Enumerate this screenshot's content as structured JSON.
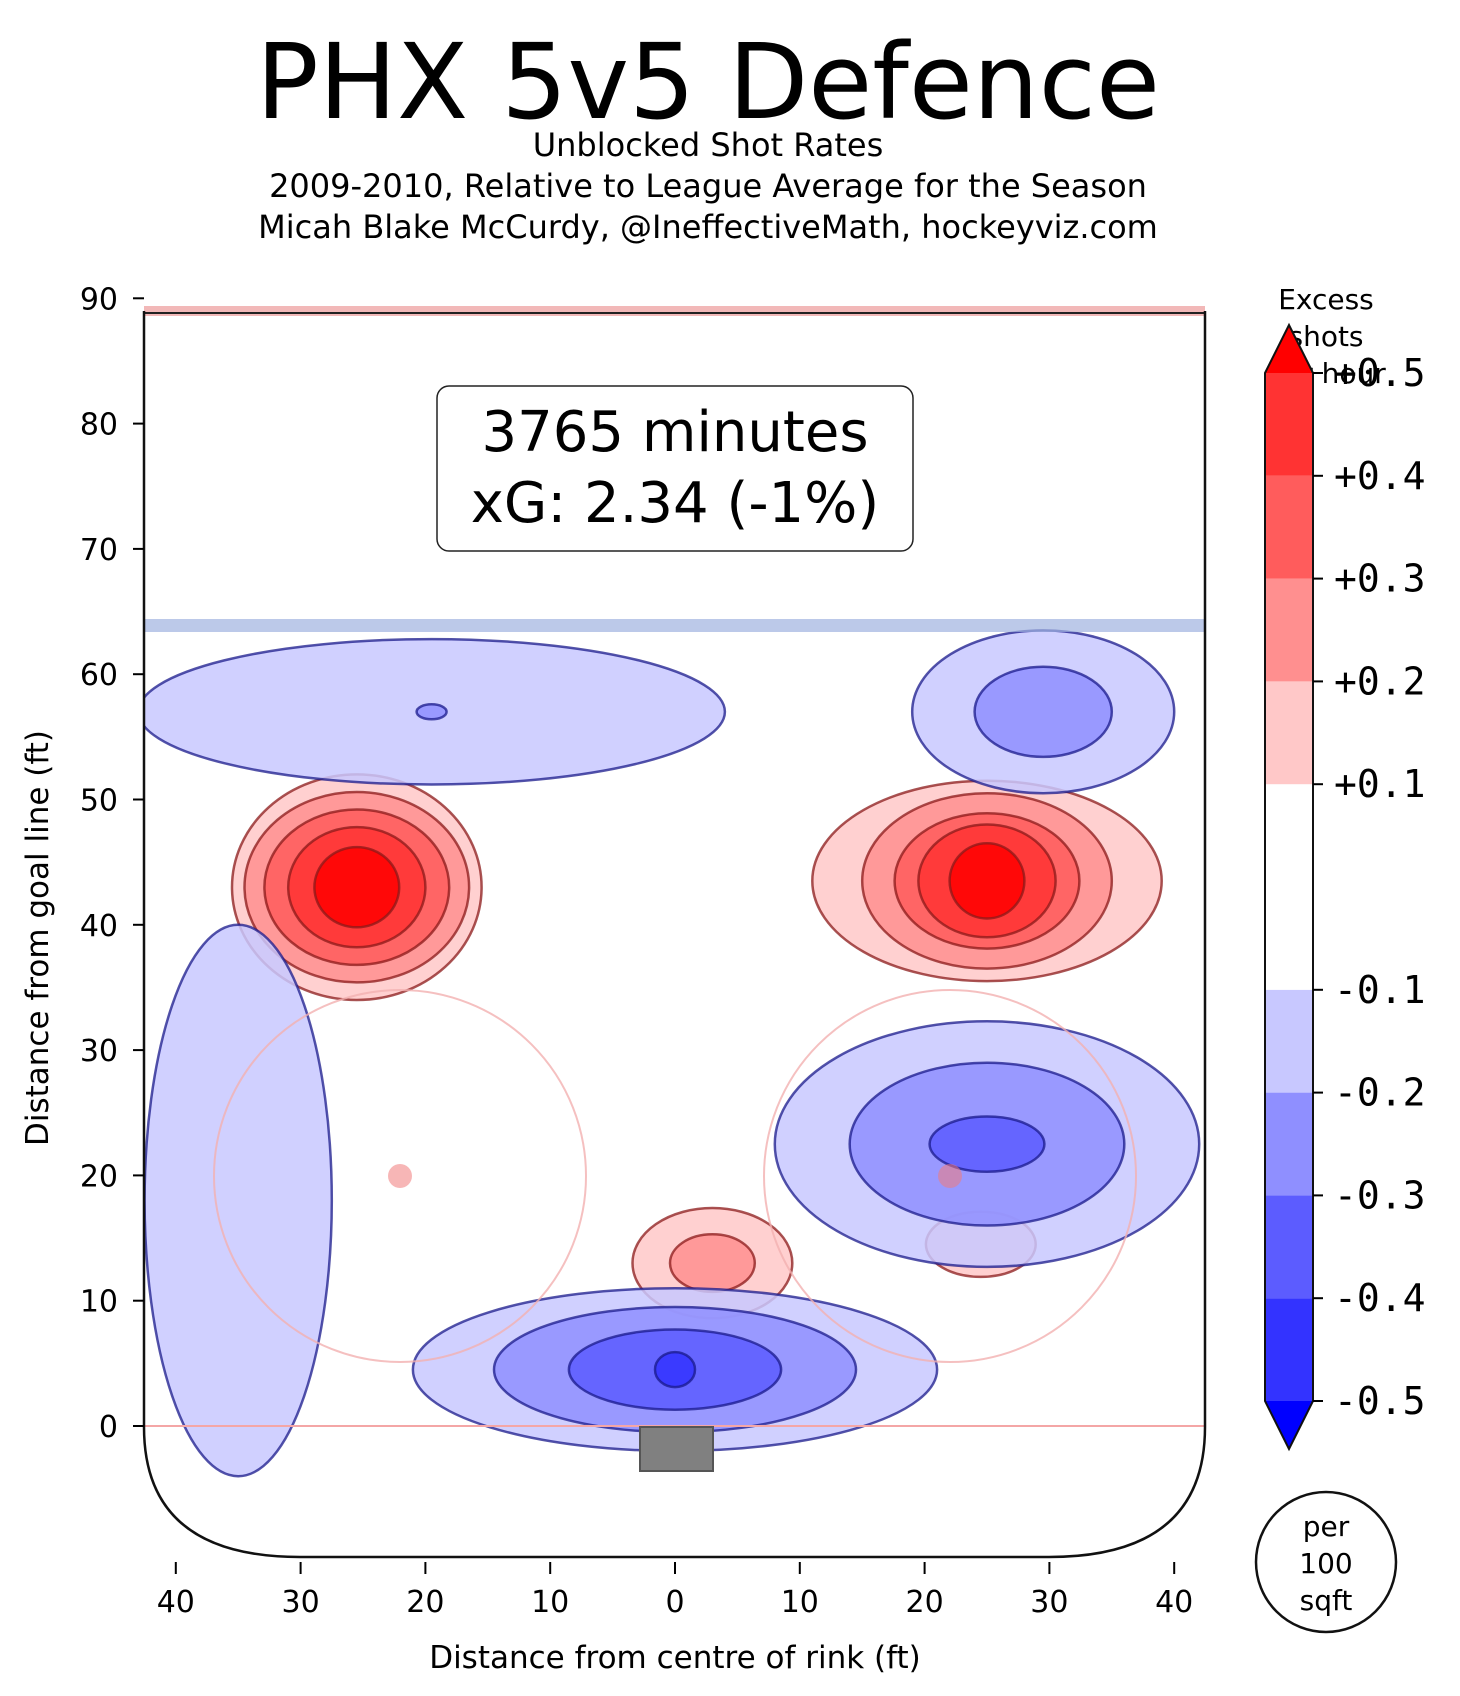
{
  "chart_data": {
    "type": "heatmap",
    "title": "PHX 5v5 Defence",
    "subtitle_lines": [
      "Unblocked Shot Rates",
      "2009-2010, Relative to League Average for the Season",
      "Micah Blake McCurdy, @IneffectiveMath, hockeyviz.com"
    ],
    "xlabel": "Distance from centre of rink (ft)",
    "ylabel": "Distance from goal line (ft)",
    "xlim": [
      -42.5,
      42.5
    ],
    "ylim": [
      -11,
      90
    ],
    "x_ticks": [
      -40,
      -30,
      -20,
      -10,
      0,
      10,
      20,
      30,
      40
    ],
    "x_tick_labels": [
      "40",
      "30",
      "20",
      "10",
      "0",
      "10",
      "20",
      "30",
      "40"
    ],
    "y_ticks": [
      0,
      10,
      20,
      30,
      40,
      50,
      60,
      70,
      80,
      90
    ],
    "y_tick_labels": [
      "0",
      "10",
      "20",
      "30",
      "40",
      "50",
      "60",
      "70",
      "80",
      "90"
    ],
    "annotation": {
      "minutes": "3765 minutes",
      "xg": "xG: 2.34 (-1%)"
    },
    "colorbar": {
      "title_lines": [
        "Excess",
        "shots",
        "per hour"
      ],
      "levels": [
        -0.5,
        -0.4,
        -0.3,
        -0.2,
        -0.1,
        0.1,
        0.2,
        0.3,
        0.4,
        0.5
      ],
      "tick_labels": [
        "-0.5",
        "-0.4",
        "-0.3",
        "-0.2",
        "-0.1",
        "+0.1",
        "+0.2",
        "+0.3",
        "+0.4",
        "+0.5"
      ],
      "colors_low_to_high": [
        "#0000ff",
        "#3333ff",
        "#5c5cff",
        "#8f8fff",
        "#c8c8ff",
        "#ffffff",
        "#ffc8c8",
        "#ff8f8f",
        "#ff5c5c",
        "#ff3333",
        "#ff0000"
      ],
      "unit_lines": [
        "per",
        "100",
        "sqft"
      ]
    },
    "regions": [
      {
        "name": "left-high-slot-hot",
        "sign": "+",
        "peak": 0.5,
        "center": [
          -25.5,
          43
        ],
        "radii": [
          [
            10,
            9
          ],
          [
            9,
            7.6
          ],
          [
            7.4,
            6.2
          ],
          [
            5.5,
            4.8
          ],
          [
            3.4,
            3.2
          ]
        ]
      },
      {
        "name": "right-high-slot-hot",
        "sign": "+",
        "peak": 0.5,
        "center": [
          25,
          43.5
        ],
        "radii": [
          [
            14,
            8
          ],
          [
            10,
            7
          ],
          [
            7.4,
            5.4
          ],
          [
            5.5,
            4.5
          ],
          [
            3,
            3
          ]
        ]
      },
      {
        "name": "slot-hot",
        "sign": "+",
        "peak": 0.3,
        "center": [
          3,
          13
        ],
        "radii": [
          [
            6.4,
            4.4
          ],
          [
            3.4,
            2.3
          ]
        ]
      },
      {
        "name": "right-circle-hot",
        "sign": "+",
        "peak": 0.2,
        "center": [
          24.5,
          14.5
        ],
        "radii": [
          [
            4.4,
            2.6
          ]
        ]
      },
      {
        "name": "left-point-cold",
        "sign": "-",
        "peak": -0.3,
        "center": [
          -19.5,
          57
        ],
        "radii": [
          [
            23.5,
            5.8
          ],
          [
            1.2,
            0.6
          ]
        ]
      },
      {
        "name": "right-point-cold",
        "sign": "-",
        "peak": -0.3,
        "center": [
          29.5,
          57
        ],
        "radii": [
          [
            10.5,
            6.5
          ],
          [
            5.5,
            3.6
          ]
        ]
      },
      {
        "name": "right-circle-cold",
        "sign": "-",
        "peak": -0.4,
        "center": [
          25,
          22.5
        ],
        "radii": [
          [
            17,
            9.8
          ],
          [
            11,
            6.5
          ],
          [
            4.6,
            2.2
          ]
        ]
      },
      {
        "name": "crease-cold",
        "sign": "-",
        "peak": -0.5,
        "center": [
          0,
          4.5
        ],
        "radii": [
          [
            21,
            6.5
          ],
          [
            14.5,
            5
          ],
          [
            8.5,
            3.2
          ],
          [
            1.6,
            1.4
          ]
        ]
      },
      {
        "name": "left-boards-cold",
        "sign": "-",
        "peak": -0.2,
        "center": [
          -35,
          18
        ],
        "radii": [
          [
            7.5,
            22
          ]
        ]
      }
    ]
  }
}
